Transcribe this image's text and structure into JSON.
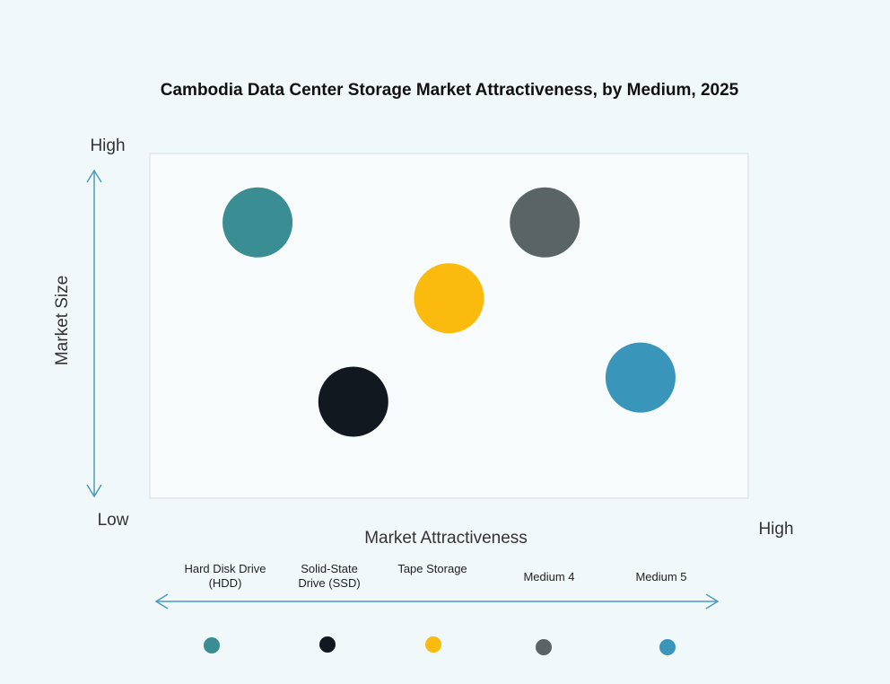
{
  "chart_data": {
    "type": "scatter",
    "title": "Cambodia Data Center Storage Market Attractiveness,  by Medium, 2025",
    "xlabel": "Market Attractiveness",
    "ylabel": "Market Size",
    "x_low_label": "Low",
    "x_high_label": "High",
    "y_high_label": "High",
    "xlim": [
      0,
      1
    ],
    "ylim": [
      0,
      1
    ],
    "grid": false,
    "legend_placement": "bottom",
    "points": [
      {
        "name": "Hard Disk Drive (HDD)",
        "legend_lines": [
          "Hard Disk Drive",
          "(HDD)"
        ],
        "x": 0.18,
        "y": 0.8,
        "color": "#3a8d93"
      },
      {
        "name": "Solid-State Drive (SSD)",
        "legend_lines": [
          "Solid-State",
          "Drive (SSD)"
        ],
        "x": 0.34,
        "y": 0.28,
        "color": "#111820"
      },
      {
        "name": "Tape Storage",
        "legend_lines": [
          "Tape Storage"
        ],
        "x": 0.5,
        "y": 0.58,
        "color": "#fbbb0e"
      },
      {
        "name": "Medium 4",
        "legend_lines": [
          "Medium 4"
        ],
        "x": 0.66,
        "y": 0.8,
        "color": "#5a6464"
      },
      {
        "name": "Medium 5",
        "legend_lines": [
          "Medium 5"
        ],
        "x": 0.82,
        "y": 0.35,
        "color": "#3a95bb"
      }
    ],
    "arrow_color": "#4a9bbf"
  }
}
